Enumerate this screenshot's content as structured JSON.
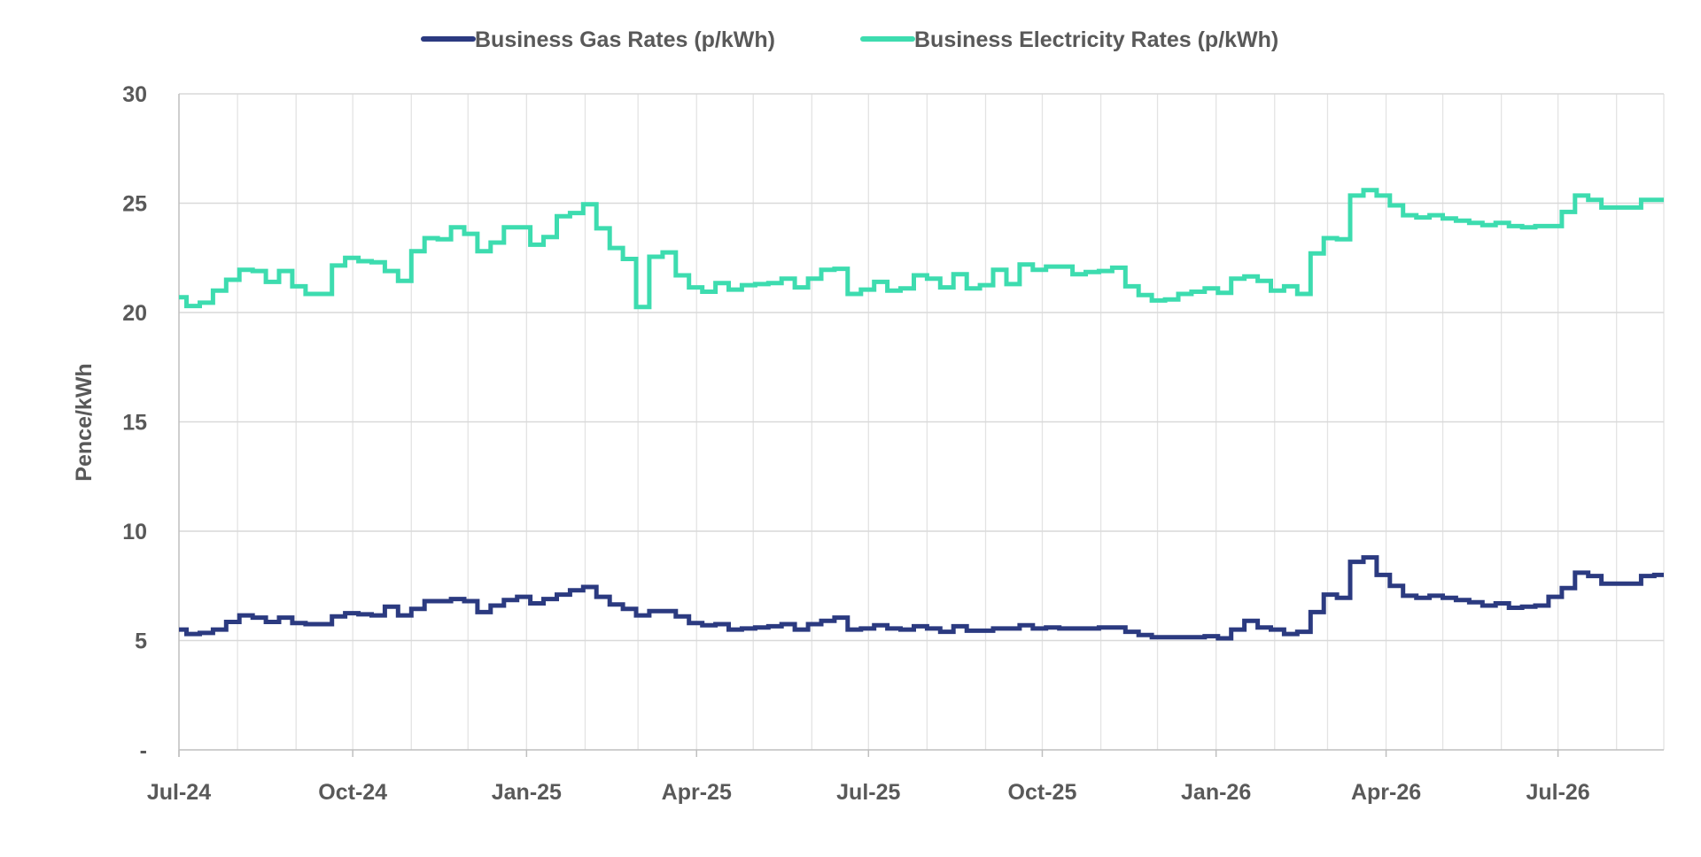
{
  "chart_data": {
    "type": "line",
    "title": "",
    "xlabel": "",
    "ylabel": "Pence/kWh",
    "ylim": [
      0,
      30
    ],
    "y_ticks": [
      "-",
      "5",
      "10",
      "15",
      "20",
      "25",
      "30"
    ],
    "x_ticks": [
      "Jul-24",
      "Oct-24",
      "Jan-25",
      "Apr-25",
      "Jul-25",
      "Oct-25",
      "Jan-26",
      "Apr-26",
      "Jul-26"
    ],
    "x_range": [
      "2024-07-01",
      "2026-08-26"
    ],
    "grid": true,
    "legend_position": "top-center",
    "step": true,
    "series": [
      {
        "name": "Business Gas Rates (p/kWh)",
        "color": "#2b3a80",
        "points": [
          [
            "2024-07-01",
            5.5
          ],
          [
            "2024-07-05",
            5.3
          ],
          [
            "2024-07-12",
            5.35
          ],
          [
            "2024-07-19",
            5.5
          ],
          [
            "2024-07-26",
            5.85
          ],
          [
            "2024-08-02",
            6.15
          ],
          [
            "2024-08-09",
            6.05
          ],
          [
            "2024-08-16",
            5.85
          ],
          [
            "2024-08-23",
            6.05
          ],
          [
            "2024-08-30",
            5.8
          ],
          [
            "2024-09-06",
            5.75
          ],
          [
            "2024-09-13",
            5.75
          ],
          [
            "2024-09-20",
            6.1
          ],
          [
            "2024-09-27",
            6.25
          ],
          [
            "2024-10-04",
            6.2
          ],
          [
            "2024-10-11",
            6.15
          ],
          [
            "2024-10-18",
            6.55
          ],
          [
            "2024-10-25",
            6.15
          ],
          [
            "2024-11-01",
            6.45
          ],
          [
            "2024-11-08",
            6.8
          ],
          [
            "2024-11-15",
            6.8
          ],
          [
            "2024-11-22",
            6.9
          ],
          [
            "2024-11-29",
            6.8
          ],
          [
            "2024-12-06",
            6.3
          ],
          [
            "2024-12-13",
            6.6
          ],
          [
            "2024-12-20",
            6.85
          ],
          [
            "2024-12-27",
            7.0
          ],
          [
            "2025-01-03",
            6.7
          ],
          [
            "2025-01-10",
            6.9
          ],
          [
            "2025-01-17",
            7.1
          ],
          [
            "2025-01-24",
            7.3
          ],
          [
            "2025-01-31",
            7.45
          ],
          [
            "2025-02-07",
            7.0
          ],
          [
            "2025-02-14",
            6.65
          ],
          [
            "2025-02-21",
            6.45
          ],
          [
            "2025-02-28",
            6.15
          ],
          [
            "2025-03-07",
            6.35
          ],
          [
            "2025-03-14",
            6.35
          ],
          [
            "2025-03-21",
            6.1
          ],
          [
            "2025-03-28",
            5.8
          ],
          [
            "2025-04-04",
            5.7
          ],
          [
            "2025-04-11",
            5.75
          ],
          [
            "2025-04-18",
            5.5
          ],
          [
            "2025-04-25",
            5.55
          ],
          [
            "2025-05-02",
            5.6
          ],
          [
            "2025-05-09",
            5.65
          ],
          [
            "2025-05-16",
            5.75
          ],
          [
            "2025-05-23",
            5.5
          ],
          [
            "2025-05-30",
            5.75
          ],
          [
            "2025-06-06",
            5.9
          ],
          [
            "2025-06-13",
            6.05
          ],
          [
            "2025-06-20",
            5.5
          ],
          [
            "2025-06-27",
            5.55
          ],
          [
            "2025-07-04",
            5.7
          ],
          [
            "2025-07-11",
            5.55
          ],
          [
            "2025-07-18",
            5.5
          ],
          [
            "2025-07-25",
            5.65
          ],
          [
            "2025-08-01",
            5.55
          ],
          [
            "2025-08-08",
            5.4
          ],
          [
            "2025-08-15",
            5.65
          ],
          [
            "2025-08-22",
            5.45
          ],
          [
            "2025-08-29",
            5.45
          ],
          [
            "2025-09-05",
            5.55
          ],
          [
            "2025-09-12",
            5.55
          ],
          [
            "2025-09-19",
            5.7
          ],
          [
            "2025-09-26",
            5.55
          ],
          [
            "2025-10-03",
            5.6
          ],
          [
            "2025-10-10",
            5.55
          ],
          [
            "2025-10-17",
            5.55
          ],
          [
            "2025-10-24",
            5.55
          ],
          [
            "2025-10-31",
            5.6
          ],
          [
            "2025-11-07",
            5.6
          ],
          [
            "2025-11-14",
            5.4
          ],
          [
            "2025-11-21",
            5.25
          ],
          [
            "2025-11-28",
            5.15
          ],
          [
            "2025-12-05",
            5.15
          ],
          [
            "2025-12-12",
            5.15
          ],
          [
            "2025-12-19",
            5.15
          ],
          [
            "2025-12-26",
            5.2
          ],
          [
            "2026-01-02",
            5.1
          ],
          [
            "2026-01-09",
            5.5
          ],
          [
            "2026-01-16",
            5.9
          ],
          [
            "2026-01-23",
            5.6
          ],
          [
            "2026-01-30",
            5.5
          ],
          [
            "2026-02-06",
            5.3
          ],
          [
            "2026-02-13",
            5.4
          ],
          [
            "2026-02-20",
            6.3
          ],
          [
            "2026-02-27",
            7.1
          ],
          [
            "2026-03-06",
            6.95
          ],
          [
            "2026-03-13",
            8.6
          ],
          [
            "2026-03-20",
            8.8
          ],
          [
            "2026-03-27",
            8.0
          ],
          [
            "2026-04-03",
            7.5
          ],
          [
            "2026-04-10",
            7.05
          ],
          [
            "2026-04-17",
            6.95
          ],
          [
            "2026-04-24",
            7.05
          ],
          [
            "2026-05-01",
            6.95
          ],
          [
            "2026-05-08",
            6.85
          ],
          [
            "2026-05-15",
            6.75
          ],
          [
            "2026-05-22",
            6.6
          ],
          [
            "2026-05-29",
            6.7
          ],
          [
            "2026-06-05",
            6.5
          ],
          [
            "2026-06-12",
            6.55
          ],
          [
            "2026-06-19",
            6.6
          ],
          [
            "2026-06-26",
            7.0
          ],
          [
            "2026-07-03",
            7.4
          ],
          [
            "2026-07-10",
            8.1
          ],
          [
            "2026-07-17",
            7.95
          ],
          [
            "2026-07-24",
            7.6
          ],
          [
            "2026-07-31",
            7.6
          ],
          [
            "2026-08-07",
            7.6
          ],
          [
            "2026-08-14",
            7.95
          ],
          [
            "2026-08-21",
            8.0
          ]
        ]
      },
      {
        "name": "Business Electricity Rates (p/kWh)",
        "color": "#3ddcaf",
        "points": [
          [
            "2024-07-01",
            20.7
          ],
          [
            "2024-07-05",
            20.3
          ],
          [
            "2024-07-12",
            20.45
          ],
          [
            "2024-07-19",
            21.0
          ],
          [
            "2024-07-26",
            21.5
          ],
          [
            "2024-08-02",
            21.95
          ],
          [
            "2024-08-09",
            21.9
          ],
          [
            "2024-08-16",
            21.4
          ],
          [
            "2024-08-23",
            21.9
          ],
          [
            "2024-08-30",
            21.2
          ],
          [
            "2024-09-06",
            20.85
          ],
          [
            "2024-09-13",
            20.85
          ],
          [
            "2024-09-20",
            22.15
          ],
          [
            "2024-09-27",
            22.5
          ],
          [
            "2024-10-04",
            22.35
          ],
          [
            "2024-10-11",
            22.3
          ],
          [
            "2024-10-18",
            21.9
          ],
          [
            "2024-10-25",
            21.45
          ],
          [
            "2024-11-01",
            22.8
          ],
          [
            "2024-11-08",
            23.4
          ],
          [
            "2024-11-15",
            23.35
          ],
          [
            "2024-11-22",
            23.9
          ],
          [
            "2024-11-29",
            23.6
          ],
          [
            "2024-12-06",
            22.8
          ],
          [
            "2024-12-13",
            23.2
          ],
          [
            "2024-12-20",
            23.9
          ],
          [
            "2024-12-27",
            23.9
          ],
          [
            "2025-01-03",
            23.1
          ],
          [
            "2025-01-10",
            23.45
          ],
          [
            "2025-01-17",
            24.4
          ],
          [
            "2025-01-24",
            24.55
          ],
          [
            "2025-01-31",
            24.95
          ],
          [
            "2025-02-07",
            23.85
          ],
          [
            "2025-02-14",
            22.95
          ],
          [
            "2025-02-21",
            22.45
          ],
          [
            "2025-02-28",
            20.25
          ],
          [
            "2025-03-07",
            22.55
          ],
          [
            "2025-03-14",
            22.75
          ],
          [
            "2025-03-21",
            21.7
          ],
          [
            "2025-03-28",
            21.15
          ],
          [
            "2025-04-04",
            20.95
          ],
          [
            "2025-04-11",
            21.35
          ],
          [
            "2025-04-18",
            21.05
          ],
          [
            "2025-04-25",
            21.25
          ],
          [
            "2025-05-02",
            21.3
          ],
          [
            "2025-05-09",
            21.35
          ],
          [
            "2025-05-16",
            21.55
          ],
          [
            "2025-05-23",
            21.15
          ],
          [
            "2025-05-30",
            21.55
          ],
          [
            "2025-06-06",
            21.95
          ],
          [
            "2025-06-13",
            22.0
          ],
          [
            "2025-06-20",
            20.85
          ],
          [
            "2025-06-27",
            21.05
          ],
          [
            "2025-07-04",
            21.4
          ],
          [
            "2025-07-11",
            21.0
          ],
          [
            "2025-07-18",
            21.1
          ],
          [
            "2025-07-25",
            21.7
          ],
          [
            "2025-08-01",
            21.55
          ],
          [
            "2025-08-08",
            21.15
          ],
          [
            "2025-08-15",
            21.75
          ],
          [
            "2025-08-22",
            21.1
          ],
          [
            "2025-08-29",
            21.25
          ],
          [
            "2025-09-05",
            21.95
          ],
          [
            "2025-09-12",
            21.3
          ],
          [
            "2025-09-19",
            22.2
          ],
          [
            "2025-09-26",
            21.95
          ],
          [
            "2025-10-03",
            22.1
          ],
          [
            "2025-10-10",
            22.1
          ],
          [
            "2025-10-17",
            21.75
          ],
          [
            "2025-10-24",
            21.85
          ],
          [
            "2025-10-31",
            21.9
          ],
          [
            "2025-11-07",
            22.05
          ],
          [
            "2025-11-14",
            21.2
          ],
          [
            "2025-11-21",
            20.8
          ],
          [
            "2025-11-28",
            20.55
          ],
          [
            "2025-12-05",
            20.6
          ],
          [
            "2025-12-12",
            20.85
          ],
          [
            "2025-12-19",
            20.95
          ],
          [
            "2025-12-26",
            21.1
          ],
          [
            "2026-01-02",
            20.9
          ],
          [
            "2026-01-09",
            21.55
          ],
          [
            "2026-01-16",
            21.65
          ],
          [
            "2026-01-23",
            21.45
          ],
          [
            "2026-01-30",
            21.0
          ],
          [
            "2026-02-06",
            21.2
          ],
          [
            "2026-02-13",
            20.85
          ],
          [
            "2026-02-20",
            22.7
          ],
          [
            "2026-02-27",
            23.4
          ],
          [
            "2026-03-06",
            23.35
          ],
          [
            "2026-03-13",
            25.35
          ],
          [
            "2026-03-20",
            25.6
          ],
          [
            "2026-03-27",
            25.35
          ],
          [
            "2026-04-03",
            24.9
          ],
          [
            "2026-04-10",
            24.45
          ],
          [
            "2026-04-17",
            24.35
          ],
          [
            "2026-04-24",
            24.45
          ],
          [
            "2026-05-01",
            24.3
          ],
          [
            "2026-05-08",
            24.2
          ],
          [
            "2026-05-15",
            24.1
          ],
          [
            "2026-05-22",
            24.0
          ],
          [
            "2026-05-29",
            24.1
          ],
          [
            "2026-06-05",
            23.95
          ],
          [
            "2026-06-12",
            23.9
          ],
          [
            "2026-06-19",
            23.95
          ],
          [
            "2026-06-26",
            23.95
          ],
          [
            "2026-07-03",
            24.6
          ],
          [
            "2026-07-10",
            25.35
          ],
          [
            "2026-07-17",
            25.15
          ],
          [
            "2026-07-24",
            24.8
          ],
          [
            "2026-07-31",
            24.8
          ],
          [
            "2026-08-07",
            24.8
          ],
          [
            "2026-08-14",
            25.15
          ],
          [
            "2026-08-21",
            25.15
          ]
        ]
      }
    ]
  }
}
